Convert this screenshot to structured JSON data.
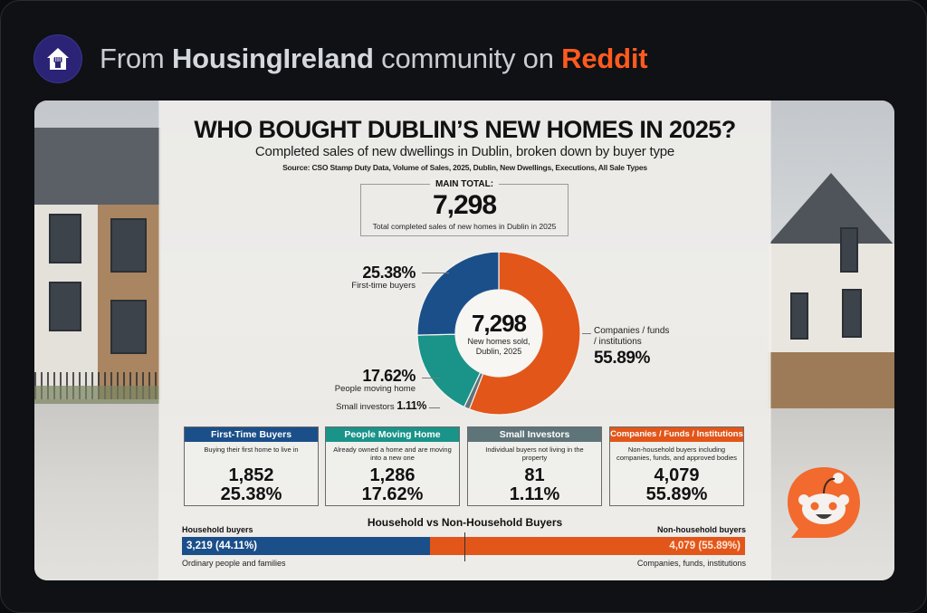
{
  "header": {
    "prefix": "From ",
    "community": "HousingIreland",
    "middle": " community on ",
    "platform": "Reddit",
    "icon": "house-fist-icon",
    "platform_color": "#ff5a1f"
  },
  "infographic": {
    "title": "WHO BOUGHT DUBLIN’S NEW HOMES IN 2025?",
    "subtitle": "Completed sales of new dwellings in Dublin, broken down by buyer type",
    "source": "Source: CSO Stamp Duty Data, Volume of Sales, 2025, Dublin, New Dwellings, Executions, All Sale Types",
    "main_total": {
      "label": "MAIN TOTAL:",
      "value": "7,298",
      "caption": "Total completed sales of new homes in Dublin in 2025"
    },
    "donut_center": {
      "value": "7,298",
      "caption_line1": "New homes sold,",
      "caption_line2": "Dublin, 2025"
    },
    "donut_labels": {
      "first_time": {
        "pct": "25.38%",
        "name": "First-time buyers"
      },
      "moving": {
        "pct": "17.62%",
        "name": "People moving home"
      },
      "small": {
        "pct": "1.11%",
        "name": "Small investors "
      },
      "companies": {
        "pct": "55.89%",
        "name_line1": "Companies / funds",
        "name_line2": "/ institutions"
      }
    },
    "cards": [
      {
        "title": "First-Time Buyers",
        "description": "Buying their first home to live in",
        "count": "1,852",
        "pct": "25.38%",
        "color": "#1b4f8a"
      },
      {
        "title": "People Moving Home",
        "description": "Already owned a home and are moving into a new one",
        "count": "1,286",
        "pct": "17.62%",
        "color": "#1a9389"
      },
      {
        "title": "Small Investors",
        "description": "Individual buyers not living in the property",
        "count": "81",
        "pct": "1.11%",
        "color": "#5f7479"
      },
      {
        "title": "Companies / Funds / Institutions",
        "description": "Non-household buyers including companies, funds, and approved bodies",
        "count": "4,079",
        "pct": "55.89%",
        "color": "#e2561a"
      }
    ],
    "split_bar": {
      "title": "Household vs Non-Household Buyers",
      "left_label": "Household buyers",
      "left_value": "3,219 (44.11%)",
      "left_caption": "Ordinary people and families",
      "left_color": "#1b4f8a",
      "right_label": "Non-household buyers",
      "right_value": "4,079 (55.89%)",
      "right_caption": "Companies, funds, institutions",
      "right_color": "#e2561a"
    }
  },
  "chart_data": [
    {
      "type": "pie",
      "title": "WHO BOUGHT DUBLIN’S NEW HOMES IN 2025?",
      "subtitle": "Completed sales of new dwellings in Dublin, broken down by buyer type",
      "center_label": "7,298 New homes sold, Dublin, 2025",
      "donut": true,
      "categories": [
        "Companies / funds / institutions",
        "Small investors",
        "People moving home",
        "First-time buyers"
      ],
      "values": [
        55.89,
        1.11,
        17.62,
        25.38
      ],
      "counts": [
        4079,
        81,
        1286,
        1852
      ],
      "colors": [
        "#e2561a",
        "#5f7479",
        "#1a9389",
        "#1b4f8a"
      ],
      "total": 7298,
      "unit": "%"
    },
    {
      "type": "bar",
      "orientation": "horizontal-stacked",
      "title": "Household vs Non-Household Buyers",
      "categories": [
        "Household buyers",
        "Non-household buyers"
      ],
      "values": [
        3219,
        4079
      ],
      "percentages": [
        44.11,
        55.89
      ],
      "captions": [
        "Ordinary people and families",
        "Companies, funds, institutions"
      ],
      "colors": [
        "#1b4f8a",
        "#e2561a"
      ]
    }
  ]
}
